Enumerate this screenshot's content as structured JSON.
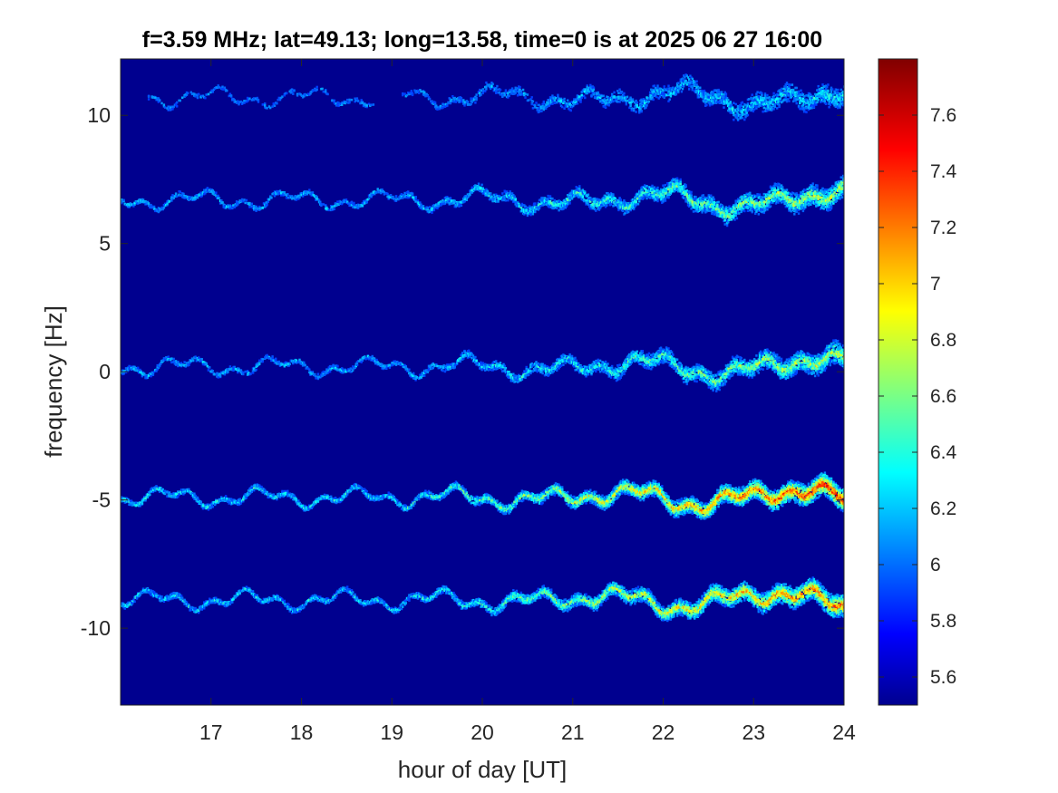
{
  "chart_data": {
    "type": "heatmap",
    "title": "f=3.59 MHz;  lat=49.13; long=13.58, time=0 is at 2025 06 27 16:00",
    "xlabel": "hour of day [UT]",
    "ylabel": "frequency [Hz]",
    "xlim": [
      16,
      24
    ],
    "ylim": [
      -13,
      12.2
    ],
    "x_ticks": [
      17,
      18,
      19,
      20,
      21,
      22,
      23,
      24
    ],
    "y_ticks": [
      10,
      5,
      0,
      -5,
      -10
    ],
    "colormap": "jet",
    "background_color": "#00008f",
    "colorbar": {
      "range": [
        5.5,
        7.8
      ],
      "ticks": [
        "7.6",
        "7.4",
        "7.2",
        "7",
        "6.8",
        "6.6",
        "6.4",
        "6.2",
        "6",
        "5.8",
        "5.6"
      ],
      "tick_values": [
        7.6,
        7.4,
        7.2,
        7.0,
        6.8,
        6.6,
        6.4,
        6.2,
        6.0,
        5.8,
        5.6
      ]
    },
    "traces": [
      {
        "center_hz": 10.7,
        "start_hour": 16.3,
        "end_hour": 24,
        "intensity": 0.3,
        "gap": [
          18.8,
          19.1
        ]
      },
      {
        "center_hz": 6.7,
        "start_hour": 16.0,
        "end_hour": 24,
        "intensity": 0.55
      },
      {
        "center_hz": 0.2,
        "start_hour": 16.0,
        "end_hour": 24,
        "intensity": 0.55
      },
      {
        "center_hz": -4.9,
        "start_hour": 16.0,
        "end_hour": 24,
        "intensity": 0.9
      },
      {
        "center_hz": -8.9,
        "start_hour": 16.0,
        "end_hour": 24,
        "intensity": 0.8
      }
    ]
  }
}
